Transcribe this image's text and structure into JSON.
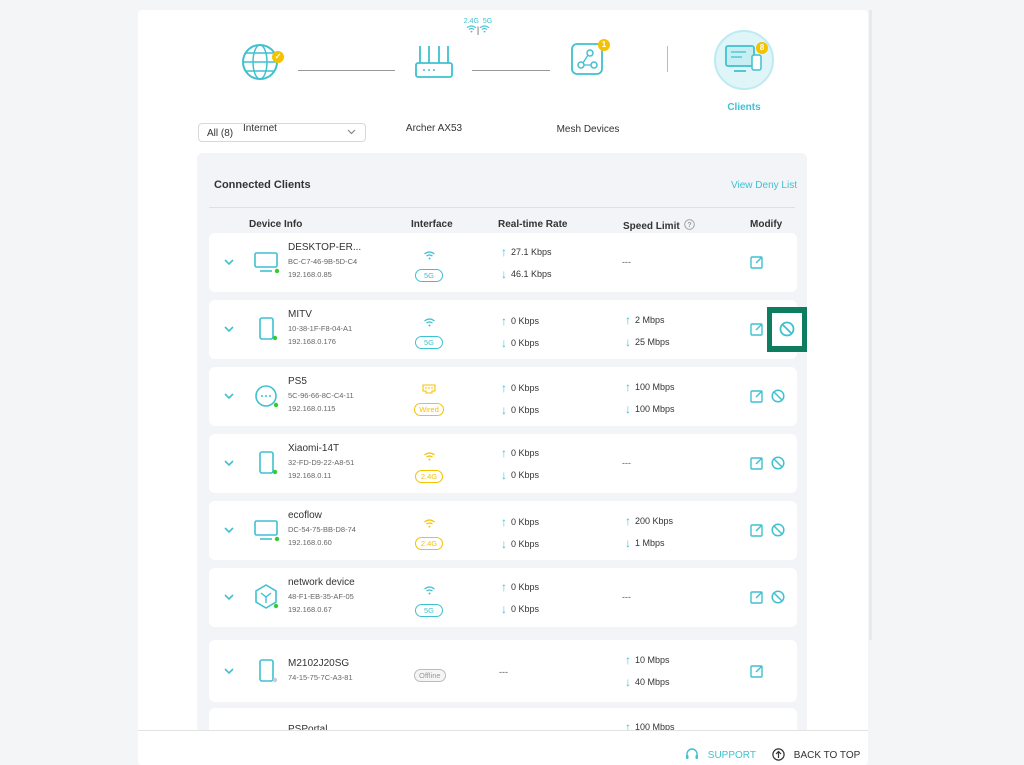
{
  "topology": {
    "internet_label": "Internet",
    "router_label": "Archer AX53",
    "mesh_label": "Mesh Devices",
    "clients_label": "Clients",
    "band_24": "2.4G",
    "band_5": "5G",
    "band_sep": "|",
    "mesh_badge": "1",
    "clients_badge": "8"
  },
  "filter": {
    "value": "All (8)"
  },
  "connected_clients": {
    "title": "Connected Clients",
    "view_deny_list": "View Deny List",
    "headers": {
      "device_info": "Device Info",
      "interface": "Interface",
      "realtime_rate": "Real-time Rate",
      "speed_limit": "Speed Limit",
      "modify": "Modify"
    }
  },
  "clients": [
    {
      "name": "DESKTOP-ER...",
      "mac": "BC-C7-46-9B-5D-C4",
      "ip": "192.168.0.85",
      "iface": "5G",
      "up": "27.1 Kbps",
      "down": "46.1 Kbps",
      "limit_up": "",
      "limit_down": "",
      "limit_none": "---"
    },
    {
      "name": "MITV",
      "mac": "10-38-1F-F8-04-A1",
      "ip": "192.168.0.176",
      "iface": "5G",
      "up": "0 Kbps",
      "down": "0 Kbps",
      "limit_up": "2 Mbps",
      "limit_down": "25 Mbps",
      "limit_none": ""
    },
    {
      "name": "PS5",
      "mac": "5C-96-66-8C-C4-11",
      "ip": "192.168.0.115",
      "iface": "Wired",
      "up": "0 Kbps",
      "down": "0 Kbps",
      "limit_up": "100 Mbps",
      "limit_down": "100 Mbps",
      "limit_none": ""
    },
    {
      "name": "Xiaomi-14T",
      "mac": "32-FD-D9-22-A8-51",
      "ip": "192.168.0.11",
      "iface": "2.4G",
      "up": "0 Kbps",
      "down": "0 Kbps",
      "limit_up": "",
      "limit_down": "",
      "limit_none": "---"
    },
    {
      "name": "ecoflow",
      "mac": "DC-54-75-BB-D8-74",
      "ip": "192.168.0.60",
      "iface": "2.4G",
      "up": "0 Kbps",
      "down": "0 Kbps",
      "limit_up": "200 Kbps",
      "limit_down": "1 Mbps",
      "limit_none": ""
    },
    {
      "name": "network device",
      "mac": "48-F1-EB-35-AF-05",
      "ip": "192.168.0.67",
      "iface": "5G",
      "up": "0 Kbps",
      "down": "0 Kbps",
      "limit_up": "",
      "limit_down": "",
      "limit_none": "---"
    },
    {
      "name": "M2102J20SG",
      "mac": "74-15-75-7C-A3-81",
      "ip": "",
      "iface": "Offline",
      "rate_none": "---",
      "limit_up": "10 Mbps",
      "limit_down": "40 Mbps",
      "limit_none": ""
    },
    {
      "name": "PSPortal",
      "limit_up": "100 Mbps"
    }
  ],
  "footer": {
    "support": "SUPPORT",
    "back_to_top": "BACK TO TOP"
  },
  "colors": {
    "accent": "#3fc1d0",
    "yellow": "#f5c200",
    "highlight": "#0e7c5e"
  }
}
